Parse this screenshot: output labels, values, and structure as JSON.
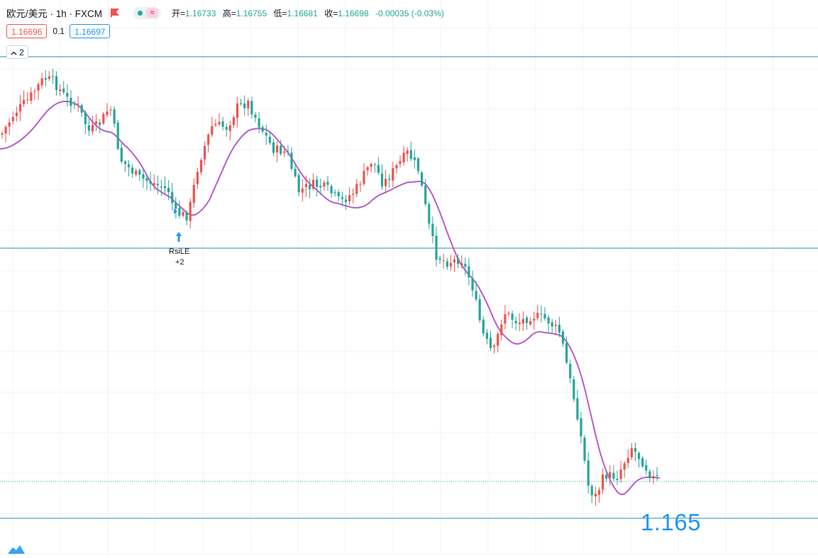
{
  "header": {
    "symbol_title": "欧元/美元 · 1h · FXCM",
    "ohlc": {
      "open_label": "开=",
      "open": "1.16733",
      "high_label": "高=",
      "high": "1.16755",
      "low_label": "低=",
      "low": "1.16681",
      "close_label": "收=",
      "close": "1.16698",
      "change": "-0.00035 (-0.03%)"
    }
  },
  "trade": {
    "sell_price": "1.16696",
    "spread": "0.1",
    "buy_price": "1.16697"
  },
  "indicators_toggle": {
    "count": "2"
  },
  "signal": {
    "name": "RsiLE",
    "qty": "+2"
  },
  "price_annotation": "1.165",
  "colors": {
    "up": "#ef5350",
    "down": "#26a69a",
    "ma": "#b65ec9",
    "hline": "#2a8bb8",
    "accent": "#2196f3",
    "grid": "#f0f3fa"
  },
  "icons": [
    "flag-icon",
    "chevron-up-icon",
    "arrow-up-icon",
    "tradingview-logo-icon"
  ]
}
